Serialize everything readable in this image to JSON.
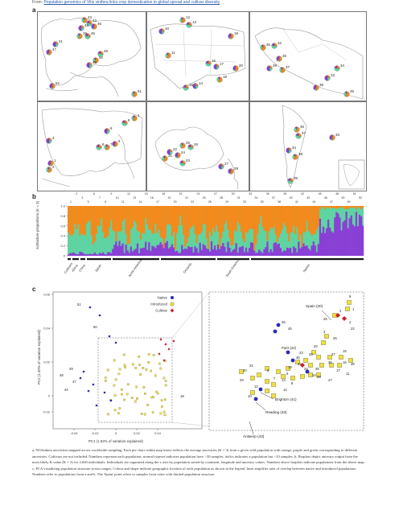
{
  "header": {
    "from_label": "From:",
    "link_text": "Population genomics of Vitis vinifera links crop domestication to global spread and cultivar diversity"
  },
  "panel_a": {
    "label": "a",
    "europe_numbers": [
      "43",
      "44",
      "42",
      "46",
      "39",
      "45",
      "41",
      "47",
      "50",
      "48",
      "49",
      "52",
      "51"
    ],
    "namerica_numbers": [
      "12",
      "13",
      "10",
      "19",
      "11",
      "16",
      "17",
      "20",
      "18",
      "15",
      "14"
    ],
    "samerica_numbers": [
      "30",
      "32",
      "29",
      "36",
      "37",
      "34",
      "33",
      "38",
      "35"
    ],
    "asia_numbers": [
      "4",
      "9",
      "5",
      "6",
      "7",
      "8",
      "3",
      "1",
      "2"
    ],
    "oceania_numbers": [
      "25",
      "26",
      "22",
      "24",
      "21",
      "23",
      "27",
      "28"
    ]
  },
  "panel_b": {
    "label": "b",
    "ylabel": "Admixture proportions (K = 3)",
    "yticks": [
      "1.0",
      "0.8",
      "0.6",
      "0.4",
      "0.2",
      "0"
    ],
    "top_numbers": [
      "1",
      "2",
      "3",
      "5",
      "6",
      "7",
      "8",
      "9",
      "10",
      "11",
      "12",
      "13",
      "14",
      "15",
      "16",
      "17",
      "18",
      "19",
      "20",
      "21",
      "22",
      "23",
      "24",
      "25",
      "26",
      "27",
      "28",
      "29",
      "30",
      "31",
      "32",
      "33",
      "34",
      "35",
      "36",
      "37",
      "38",
      "39",
      "40",
      "41",
      "42",
      "43",
      "44",
      "45",
      "46",
      "47",
      "48",
      "49",
      "50",
      "51",
      "52"
    ],
    "groups": [
      "Cultivars",
      "Africa",
      "China",
      "Japan",
      "North America",
      "Oceania",
      "South America",
      "Native"
    ],
    "colors": {
      "orange": "#f28a1d",
      "green": "#5fd3a1",
      "purple": "#8a3fd6"
    }
  },
  "panel_c": {
    "label": "c",
    "xlabel": "PC1 (1.92% of variation explained)",
    "ylabel": "PC2 (1.20% of variation explained)",
    "xticks": [
      "-0.04",
      "-0.02",
      "0",
      "0.02",
      "0.04"
    ],
    "yticks": [
      "0.06",
      "0.04",
      "0.02",
      "0",
      "-0.02"
    ],
    "legend": [
      {
        "label": "Native",
        "color": "#2b2bb5",
        "shape": "circle"
      },
      {
        "label": "Introduced",
        "color": "#f2e03a",
        "shape": "square"
      },
      {
        "label": "Cultivar",
        "color": "#c8202e",
        "shape": "diamond"
      }
    ],
    "annotations": {
      "spain": "Spain (30)",
      "paris": "Paris (42)",
      "brighton": "Brighton (41)",
      "reading": "Reading (40)",
      "antwerp": "Antwerp (43)"
    },
    "main_labels": [
      "51",
      "50",
      "49",
      "48",
      "47",
      "44",
      "18"
    ],
    "inset_labels": [
      "5",
      "1",
      "26",
      "4",
      "2",
      "22",
      "46",
      "45",
      "3",
      "25",
      "Paris (42)",
      "20",
      "15",
      "33",
      "37",
      "36",
      "16",
      "38",
      "23",
      "45",
      "32",
      "35",
      "24",
      "34",
      "28",
      "19",
      "17",
      "11",
      "31",
      "30",
      "27",
      "8",
      "29",
      "12",
      "7",
      "13",
      "14",
      "9",
      "10",
      "6"
    ]
  },
  "caption": {
    "text": "a, NGSadmix ancestries mapped across worldwide sampling. Each pie chart within map insets reflects the average ancestries (K = 3) from a given wild population with orange, purple and green corresponding to different ancestries. Cultivars are not included. Numbers represent each population; normal typeset indicates population have >30 samples, italics indicates a population has <10 samples. b, Barplots depict ancestry output from the most likely K value (K = 3) for 2,660 individuals. Individuals are organized along the x axis by population sorted by continent, longitude and ancestry values. Numbers above barplots indicate populations from the above map. c, PCA visualizing population structure across ranges. Colour and shape indicate geographic location of each population as shown in the legend. Inset amplifies area of overlap between native and introduced populations. Numbers refer to populations from a and b. The 'Spain' point refers to samples from cities with limited population structure."
  }
}
